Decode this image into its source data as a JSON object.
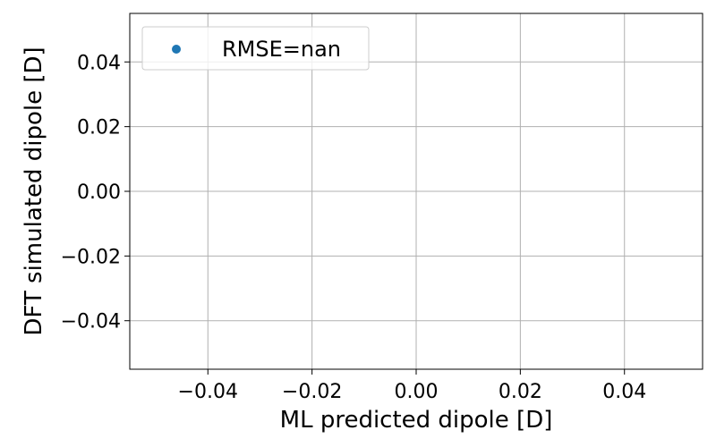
{
  "chart_data": {
    "type": "scatter",
    "title": "",
    "xlabel": "ML predicted dipole [D]",
    "ylabel": "DFT simulated dipole [D]",
    "xlim": [
      -0.055,
      0.055
    ],
    "ylim": [
      -0.055,
      0.055
    ],
    "x_ticks": [
      -0.04,
      -0.02,
      0.0,
      0.02,
      0.04
    ],
    "y_ticks": [
      -0.04,
      -0.02,
      0.0,
      0.02,
      0.04
    ],
    "x_tick_labels": [
      "−0.04",
      "−0.02",
      "0.00",
      "0.02",
      "0.04"
    ],
    "y_tick_labels": [
      "−0.04",
      "−0.02",
      "0.00",
      "0.02",
      "0.04"
    ],
    "grid": true,
    "legend_position": "top-left",
    "series": [
      {
        "name": "RMSE=nan",
        "color": "#1f77b4",
        "x": [],
        "y": []
      }
    ]
  }
}
